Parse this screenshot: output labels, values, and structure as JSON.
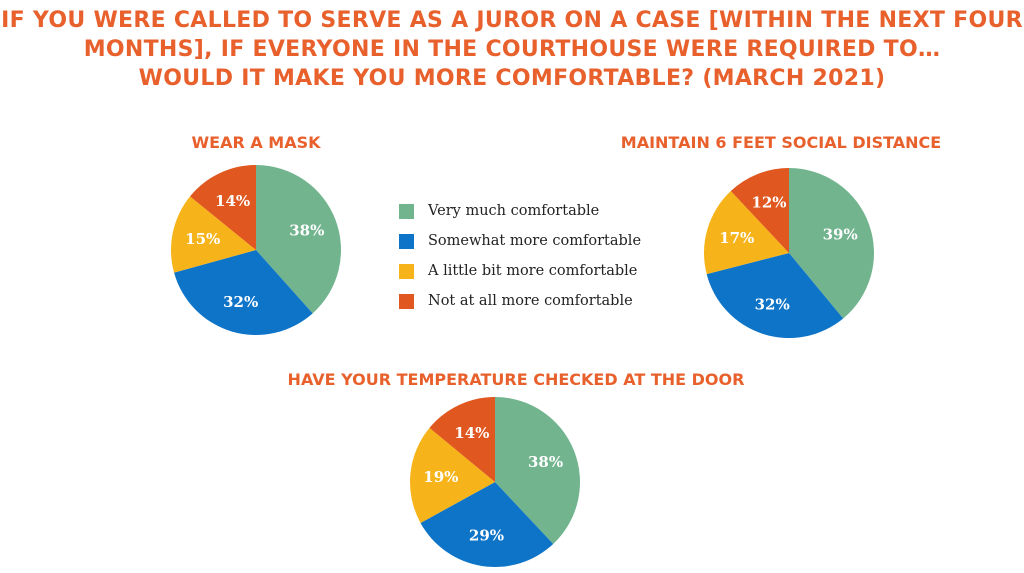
{
  "title_lines": [
    "IF YOU WERE CALLED TO SERVE AS A JUROR ON A CASE [WITHIN THE NEXT FOUR",
    "MONTHS], IF EVERYONE IN THE COURTHOUSE WERE REQUIRED TO…",
    "WOULD IT MAKE YOU MORE COMFORTABLE? (MARCH 2021)"
  ],
  "colors": {
    "title": "#E8602C",
    "series": [
      "#72B48E",
      "#0E74C8",
      "#F6B41A",
      "#E0571F"
    ]
  },
  "legend": [
    "Very much comfortable",
    "Somewhat more comfortable",
    "A little bit more comfortable",
    "Not at all more comfortable"
  ],
  "chart_data": [
    {
      "type": "pie",
      "title": "WEAR A MASK",
      "categories": [
        "Very much comfortable",
        "Somewhat more comfortable",
        "A little bit more comfortable",
        "Not at all more comfortable"
      ],
      "values": [
        38,
        32,
        15,
        14
      ],
      "labels": [
        "38%",
        "32%",
        "15%",
        "14%"
      ]
    },
    {
      "type": "pie",
      "title": "MAINTAIN 6 FEET SOCIAL DISTANCE",
      "categories": [
        "Very much comfortable",
        "Somewhat more comfortable",
        "A little bit more comfortable",
        "Not at all more comfortable"
      ],
      "values": [
        39,
        32,
        17,
        12
      ],
      "labels": [
        "39%",
        "32%",
        "17%",
        "12%"
      ]
    },
    {
      "type": "pie",
      "title": "HAVE YOUR TEMPERATURE CHECKED AT THE DOOR",
      "categories": [
        "Very much comfortable",
        "Somewhat more comfortable",
        "A little bit more comfortable",
        "Not at all more comfortable"
      ],
      "values": [
        38,
        29,
        19,
        14
      ],
      "labels": [
        "38%",
        "29%",
        "19%",
        "14%"
      ]
    }
  ]
}
